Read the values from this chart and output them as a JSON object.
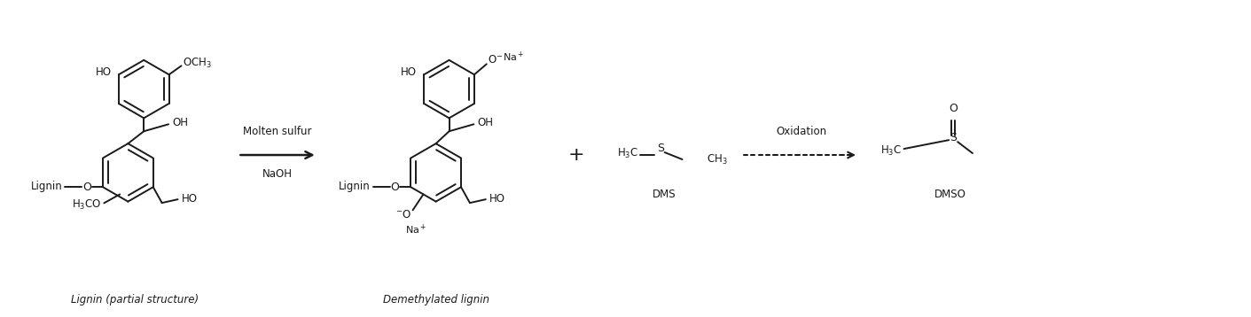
{
  "bg_color": "#ffffff",
  "text_color": "#1a1a1a",
  "fig_width": 14.11,
  "fig_height": 3.58,
  "dpi": 100,
  "label_lignin_partial": "Lignin (partial structure)",
  "label_demethylated": "Demethylated lignin",
  "label_dms": "DMS",
  "label_dmso": "DMSO",
  "reagent_line1": "Molten sulfur",
  "reagent_line2": "NaOH",
  "oxidation_label": "Oxidation"
}
